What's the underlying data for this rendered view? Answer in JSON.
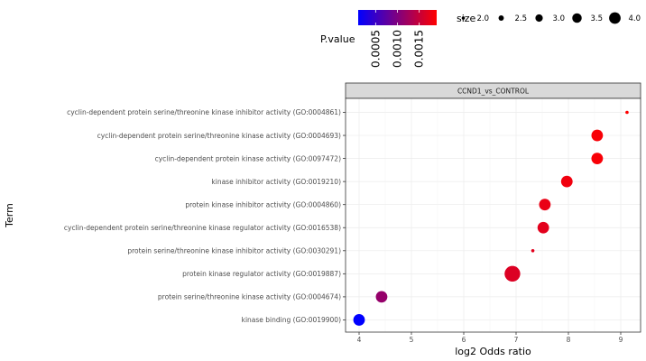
{
  "chart_data": {
    "type": "scatter",
    "facet": "CCND1_vs_CONTROL",
    "xlabel": "log2 Odds ratio",
    "ylabel": "Term",
    "xlim": [
      3.75,
      9.4
    ],
    "x_ticks": [
      4,
      5,
      6,
      7,
      8,
      9
    ],
    "grid": true,
    "terms": [
      "cyclin-dependent protein serine/threonine kinase inhibitor activity (GO:0004861)",
      "cyclin-dependent protein serine/threonine kinase activity (GO:0004693)",
      "cyclin-dependent protein kinase activity (GO:0097472)",
      "kinase inhibitor activity (GO:0019210)",
      "protein kinase inhibitor activity (GO:0004860)",
      "cyclin-dependent protein serine/threonine kinase regulator activity (GO:0016538)",
      "protein serine/threonine kinase inhibitor activity (GO:0030291)",
      "protein kinase regulator activity (GO:0019887)",
      "protein serine/threonine kinase activity (GO:0004674)",
      "kinase binding (GO:0019900)"
    ],
    "points": [
      {
        "x": 9.12,
        "size": 1.0,
        "pvalue": 0.0001
      },
      {
        "x": 8.55,
        "size": 3.0,
        "pvalue": 0.00015
      },
      {
        "x": 8.55,
        "size": 3.0,
        "pvalue": 0.00015
      },
      {
        "x": 7.97,
        "size": 3.0,
        "pvalue": 0.0002
      },
      {
        "x": 7.55,
        "size": 3.0,
        "pvalue": 0.00025
      },
      {
        "x": 7.52,
        "size": 3.0,
        "pvalue": 0.0003
      },
      {
        "x": 7.32,
        "size": 1.0,
        "pvalue": 0.0003
      },
      {
        "x": 6.93,
        "size": 4.0,
        "pvalue": 0.00035
      },
      {
        "x": 4.43,
        "size": 3.0,
        "pvalue": 0.00085
      },
      {
        "x": 4.0,
        "size": 3.0,
        "pvalue": 0.0019
      }
    ],
    "legend": {
      "color": {
        "title": "P.value",
        "low_color": "#ff0000",
        "high_color": "#0000ff",
        "range": [
          0.0001,
          0.0019
        ],
        "breaks": [
          "0.0015",
          "0.0010",
          "0.0005"
        ],
        "break_values": [
          0.0015,
          0.001,
          0.0005
        ]
      },
      "size": {
        "title": "size",
        "breaks": [
          "2.0",
          "2.5",
          "3.0",
          "3.5",
          "4.0"
        ],
        "values": [
          2.0,
          2.5,
          3.0,
          3.5,
          4.0
        ]
      }
    }
  }
}
